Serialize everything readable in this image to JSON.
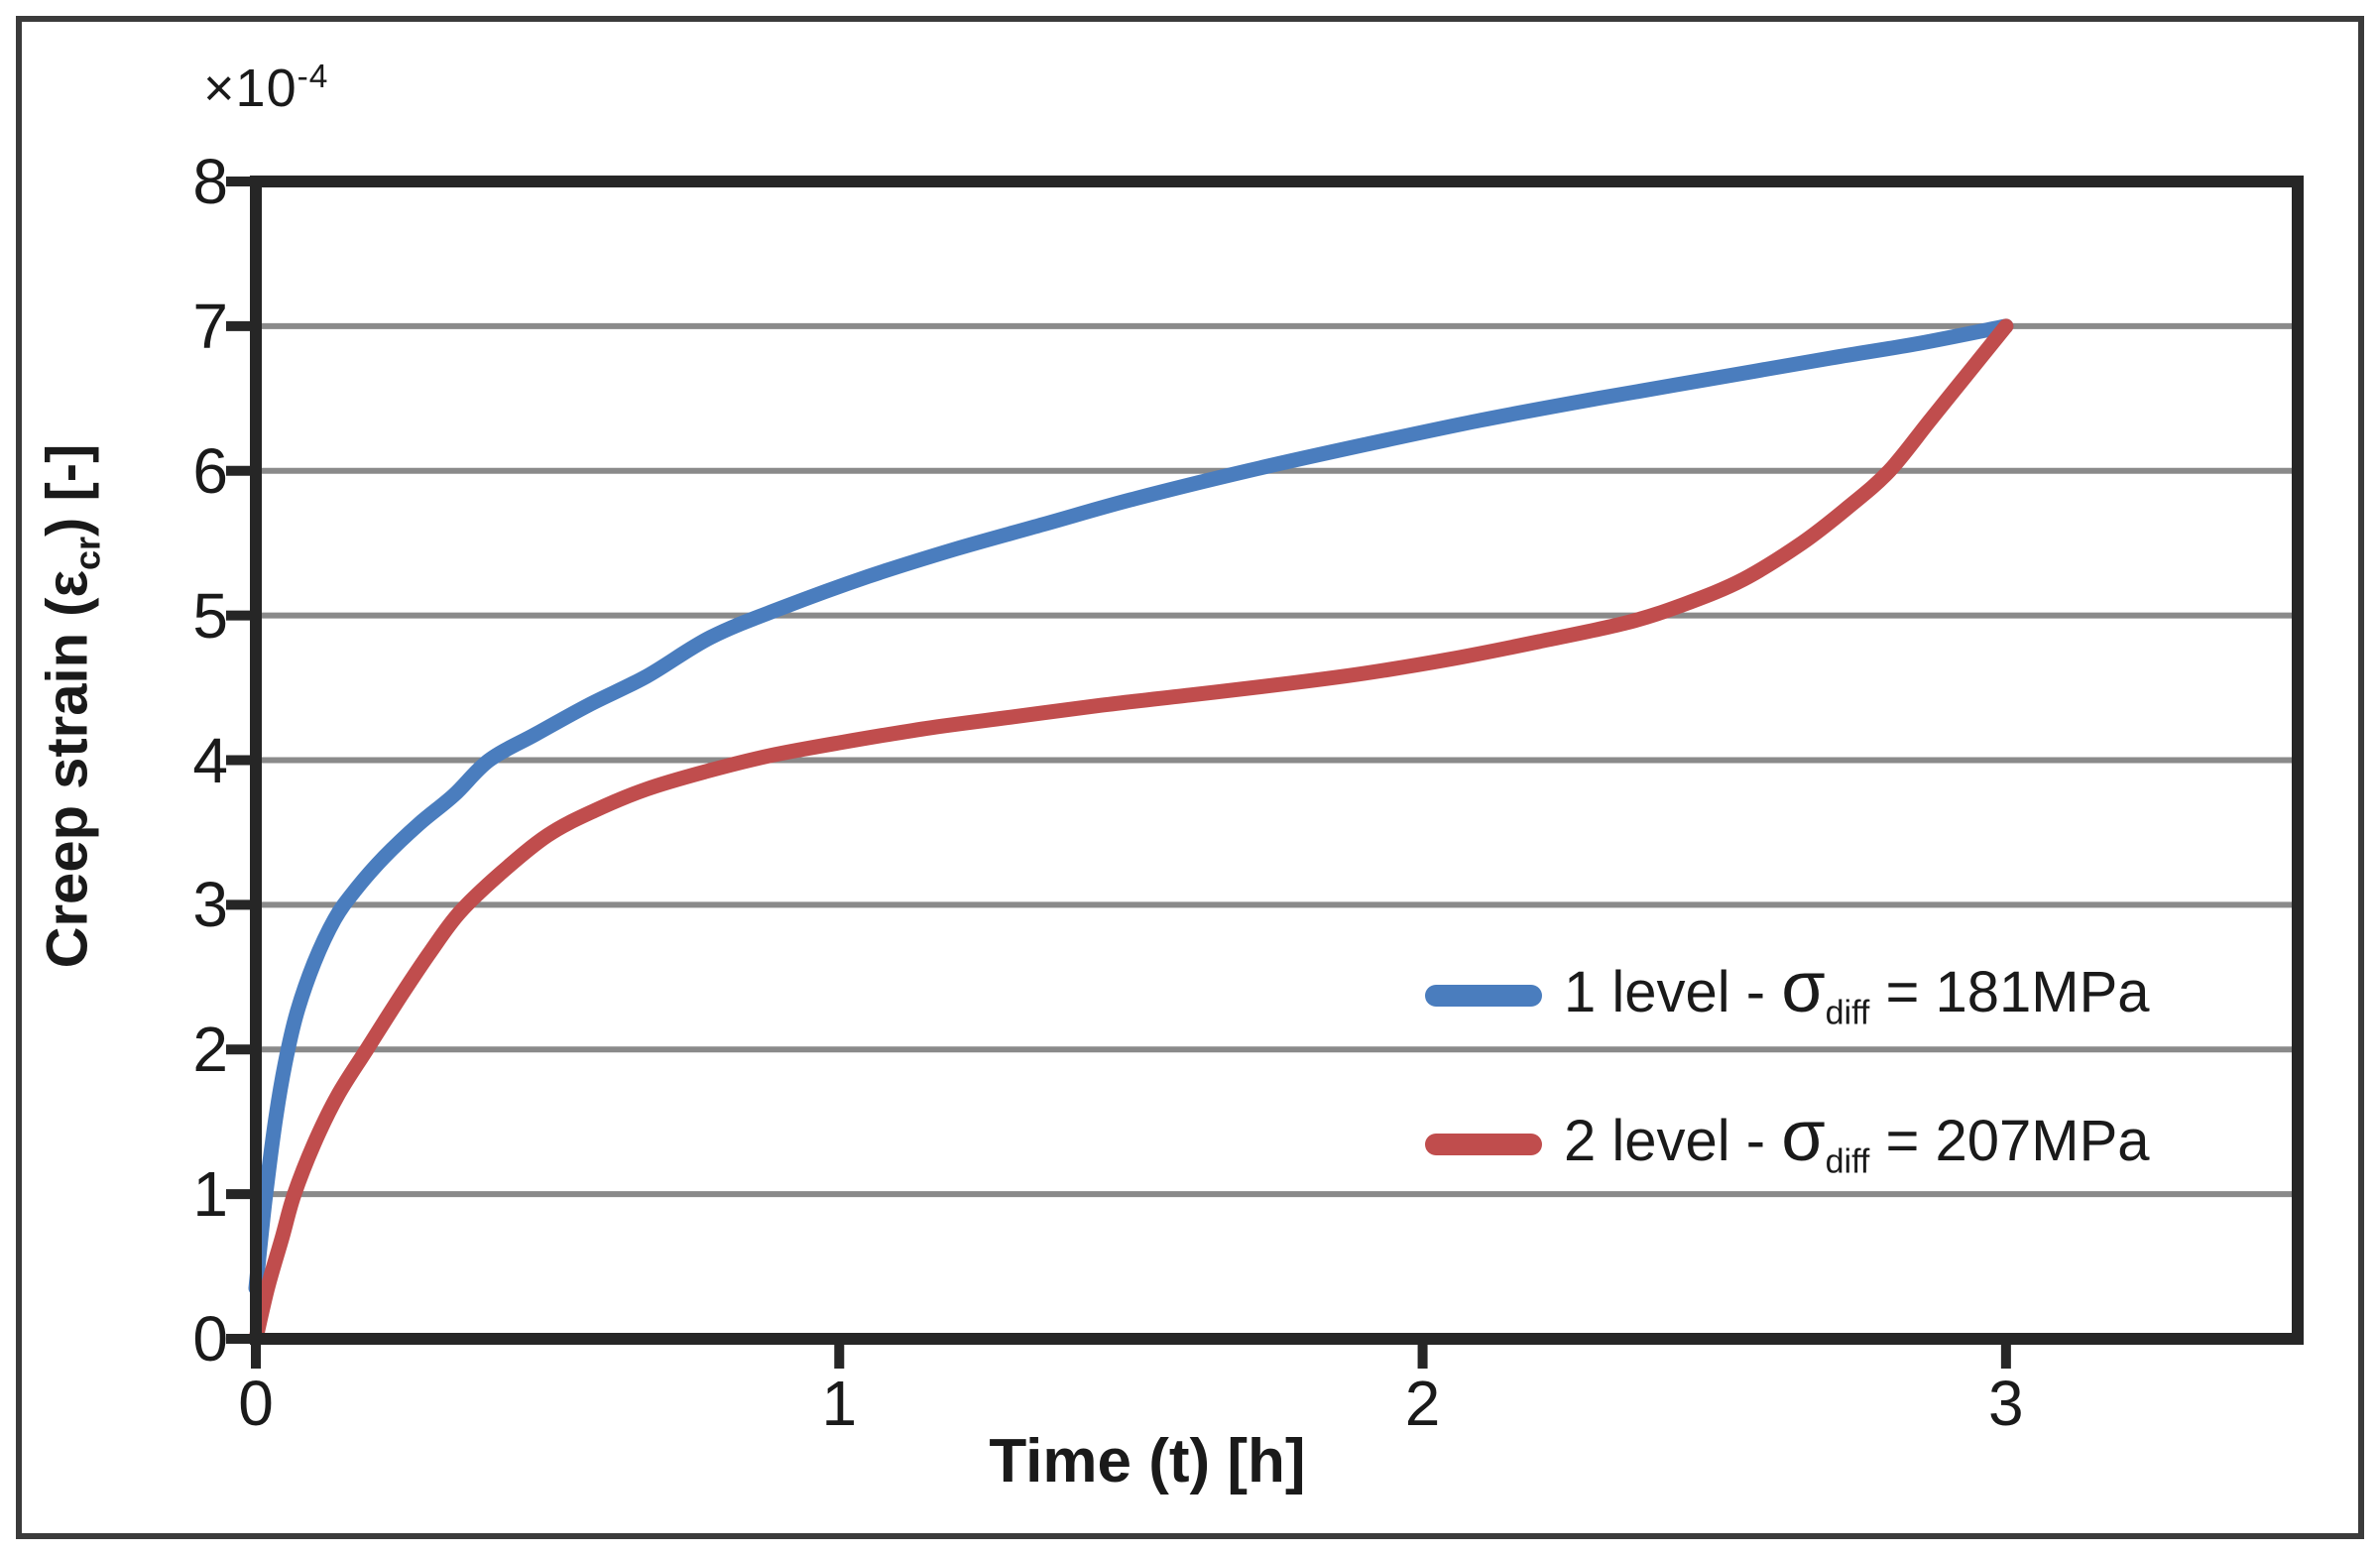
{
  "figure": {
    "offset_label": {
      "base": "×10",
      "exp": "-4"
    },
    "x_axis": {
      "label": "Time (t) [h]"
    },
    "y_axis": {
      "label_prefix": "Creep strain (ε",
      "label_sub": "cr",
      "label_suffix": ") [-]"
    }
  },
  "legend": {
    "items": [
      {
        "prefix": "1 level - ",
        "sigma": "σ",
        "sub": "diff",
        "suffix": " = 181MPa"
      },
      {
        "prefix": "2 level - ",
        "sigma": "σ",
        "sub": "diff",
        "suffix": " = 207MPa"
      }
    ]
  },
  "chart_data": {
    "type": "line",
    "title": "",
    "xlabel": "Time (t) [h]",
    "ylabel": "Creep strain (εcr) [-]",
    "y_offset_multiplier": "×10^-4",
    "xlim": [
      0,
      3.5
    ],
    "ylim": [
      0,
      8
    ],
    "xticks": [
      0,
      1,
      2,
      3
    ],
    "yticks": [
      0,
      1,
      2,
      3,
      4,
      5,
      6,
      7,
      8
    ],
    "grid": "horizontal",
    "legend_position": "inside lower right",
    "colors": {
      "grid": "#8a8a8a",
      "frame": "#262626",
      "text": "#1a1a1a"
    },
    "series": [
      {
        "name": "1 level - σdiff = 181MPa",
        "color": "#4a7dbe",
        "points": [
          [
            0,
            0.35
          ],
          [
            0.01,
            0.75
          ],
          [
            0.02,
            1.1
          ],
          [
            0.035,
            1.55
          ],
          [
            0.05,
            1.9
          ],
          [
            0.07,
            2.25
          ],
          [
            0.1,
            2.6
          ],
          [
            0.135,
            2.9
          ],
          [
            0.17,
            3.1
          ],
          [
            0.22,
            3.33
          ],
          [
            0.28,
            3.56
          ],
          [
            0.34,
            3.76
          ],
          [
            0.4,
            4.0
          ],
          [
            0.48,
            4.18
          ],
          [
            0.57,
            4.38
          ],
          [
            0.67,
            4.58
          ],
          [
            0.78,
            4.85
          ],
          [
            0.9,
            5.05
          ],
          [
            1.05,
            5.27
          ],
          [
            1.2,
            5.46
          ],
          [
            1.35,
            5.63
          ],
          [
            1.5,
            5.8
          ],
          [
            1.7,
            6.0
          ],
          [
            1.9,
            6.18
          ],
          [
            2.1,
            6.35
          ],
          [
            2.3,
            6.5
          ],
          [
            2.5,
            6.64
          ],
          [
            2.7,
            6.78
          ],
          [
            2.85,
            6.88
          ],
          [
            3.0,
            7.0
          ]
        ]
      },
      {
        "name": "2 level - σdiff = 207MPa",
        "color": "#c04d4d",
        "points": [
          [
            0,
            0
          ],
          [
            0.02,
            0.35
          ],
          [
            0.045,
            0.7
          ],
          [
            0.066,
            1.0
          ],
          [
            0.1,
            1.35
          ],
          [
            0.14,
            1.68
          ],
          [
            0.19,
            2.0
          ],
          [
            0.25,
            2.38
          ],
          [
            0.3,
            2.68
          ],
          [
            0.35,
            2.95
          ],
          [
            0.42,
            3.22
          ],
          [
            0.5,
            3.48
          ],
          [
            0.58,
            3.65
          ],
          [
            0.67,
            3.8
          ],
          [
            0.77,
            3.92
          ],
          [
            0.88,
            4.03
          ],
          [
            1.0,
            4.12
          ],
          [
            1.15,
            4.22
          ],
          [
            1.3,
            4.3
          ],
          [
            1.45,
            4.38
          ],
          [
            1.6,
            4.45
          ],
          [
            1.75,
            4.52
          ],
          [
            1.9,
            4.6
          ],
          [
            2.05,
            4.7
          ],
          [
            2.2,
            4.82
          ],
          [
            2.35,
            4.95
          ],
          [
            2.45,
            5.08
          ],
          [
            2.55,
            5.25
          ],
          [
            2.65,
            5.5
          ],
          [
            2.73,
            5.75
          ],
          [
            2.8,
            6.0
          ],
          [
            2.87,
            6.35
          ],
          [
            2.93,
            6.65
          ],
          [
            3.0,
            7.0
          ]
        ]
      }
    ]
  }
}
